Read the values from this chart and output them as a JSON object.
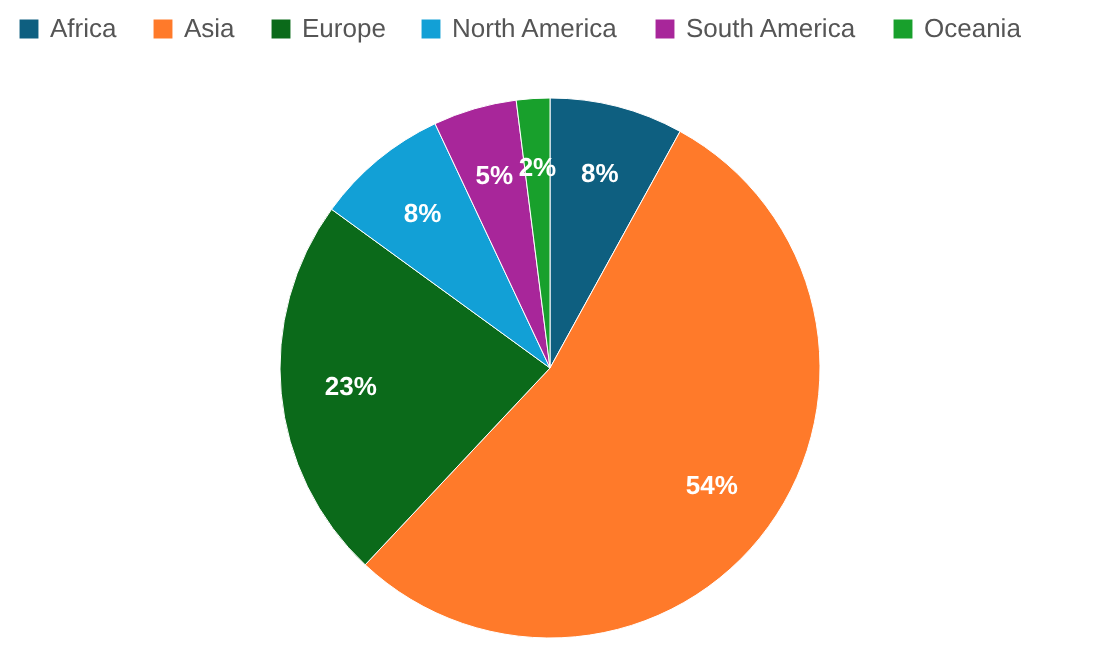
{
  "chart_data": {
    "type": "pie",
    "categories": [
      "Africa",
      "Asia",
      "Europe",
      "North America",
      "South America",
      "Oceania"
    ],
    "values": [
      8,
      54,
      23,
      8,
      5,
      2
    ],
    "colors": [
      "#0e5f80",
      "#ff7a2a",
      "#0b6a1a",
      "#12a0d6",
      "#a8269a",
      "#18a02c"
    ],
    "value_labels": [
      "8%",
      "54%",
      "23%",
      "8%",
      "5%",
      "2%"
    ],
    "legend": "top"
  }
}
